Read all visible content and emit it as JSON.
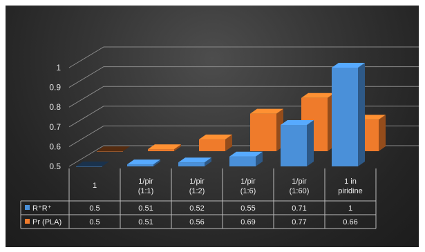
{
  "chart_data": {
    "type": "bar",
    "style": "3d-clustered-column-with-data-table",
    "categories": [
      [
        "1"
      ],
      [
        "1/pir",
        "(1:1)"
      ],
      [
        "1/pir",
        "(1:2)"
      ],
      [
        "1/pir",
        "(1:6)"
      ],
      [
        "1/pir",
        "(1:60)"
      ],
      [
        "1 in",
        "piridine"
      ]
    ],
    "series": [
      {
        "name": "R⁺R⁺",
        "color": "#4a90d9",
        "values": [
          0.5,
          0.51,
          0.52,
          0.55,
          0.71,
          1
        ]
      },
      {
        "name": "Pr (PLA)",
        "color": "#ef7b2b",
        "values": [
          0.5,
          0.51,
          0.56,
          0.69,
          0.77,
          0.66
        ]
      }
    ],
    "yticks": [
      "0.5",
      "0.6",
      "0.7",
      "0.8",
      "0.9",
      "1"
    ],
    "ylim": [
      0.5,
      1.0
    ],
    "grid": true,
    "legend": "data-table",
    "title": "",
    "xlabel": "",
    "ylabel": ""
  }
}
